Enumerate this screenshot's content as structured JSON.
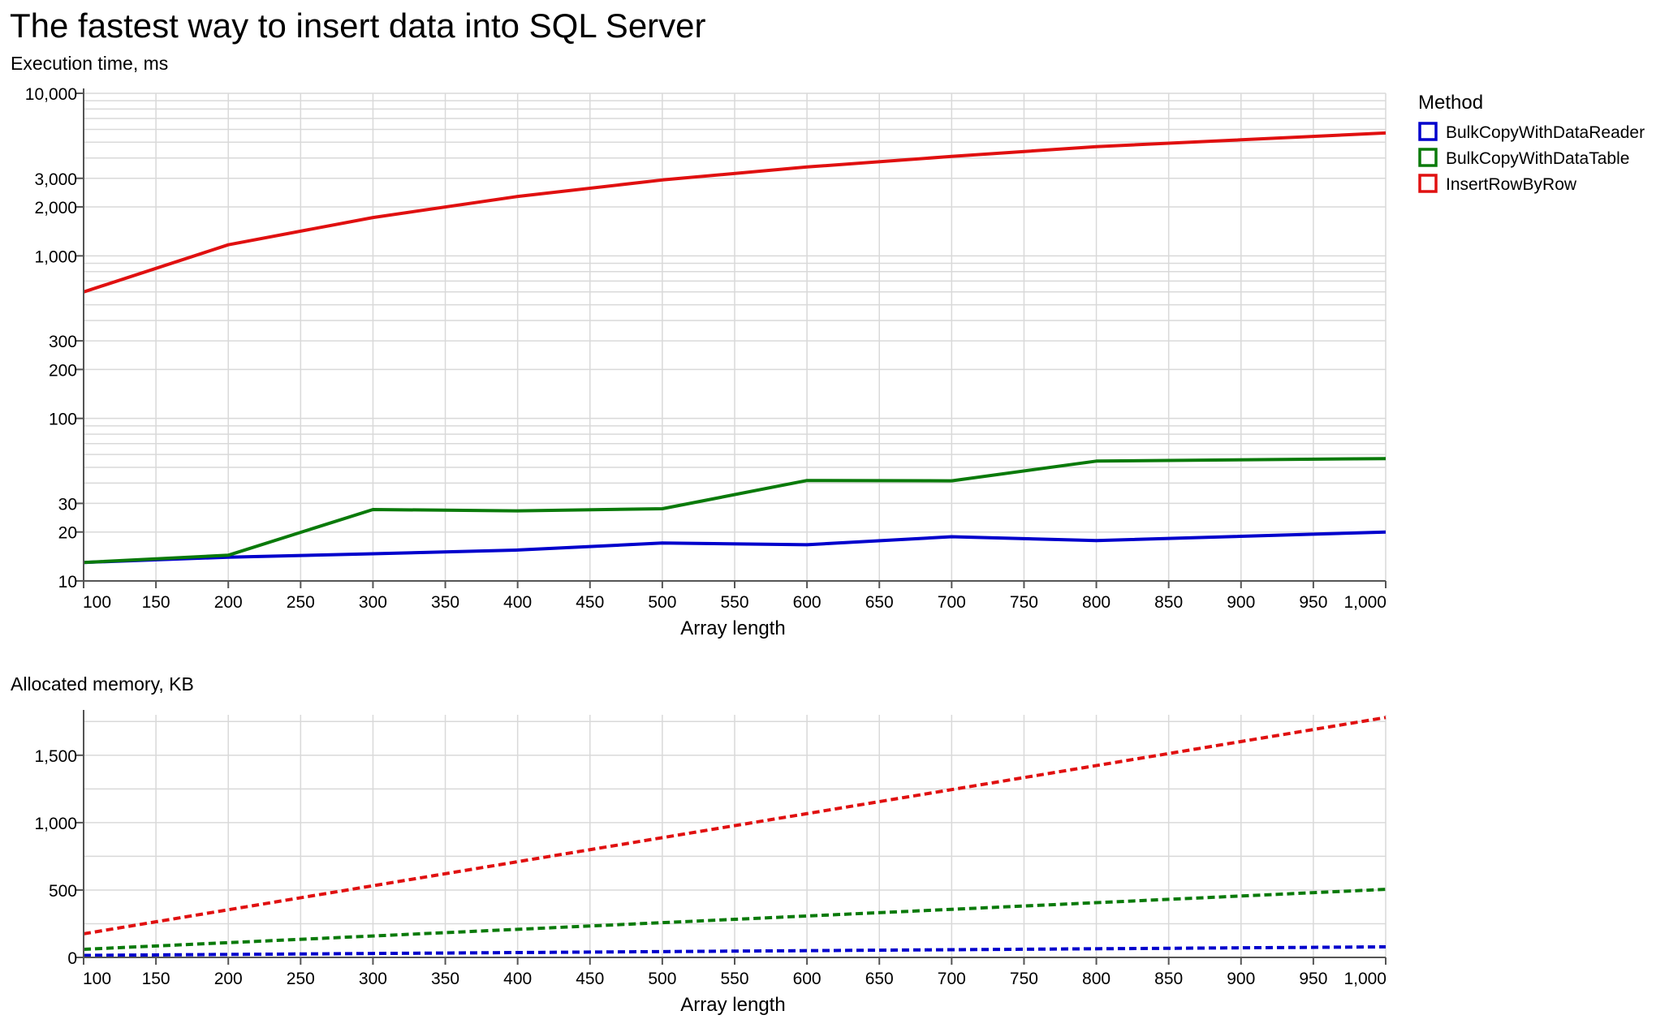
{
  "title": "The fastest way to insert data into SQL Server",
  "legend": {
    "title": "Method",
    "items": [
      {
        "label": "BulkCopyWithDataReader",
        "color": "#0000cc"
      },
      {
        "label": "BulkCopyWithDataTable",
        "color": "#0a7a0a"
      },
      {
        "label": "InsertRowByRow",
        "color": "#e01010"
      }
    ]
  },
  "chart_data": [
    {
      "type": "line",
      "title": "Execution time, ms",
      "xlabel": "Array length",
      "ylabel": "Execution time, ms",
      "yscale": "log",
      "xlim": [
        100,
        1000
      ],
      "ylim": [
        10,
        10000
      ],
      "x_ticks": [
        100,
        150,
        200,
        250,
        300,
        350,
        400,
        450,
        500,
        550,
        600,
        650,
        700,
        750,
        800,
        850,
        900,
        950,
        1000
      ],
      "x_tick_labels": [
        "100",
        "150",
        "200",
        "250",
        "300",
        "350",
        "400",
        "450",
        "500",
        "550",
        "600",
        "650",
        "700",
        "750",
        "800",
        "850",
        "900",
        "950",
        "1,000"
      ],
      "y_ticks": [
        10,
        20,
        30,
        100,
        200,
        300,
        1000,
        2000,
        3000,
        10000
      ],
      "y_tick_labels": [
        "10",
        "20",
        "30",
        "100",
        "200",
        "300",
        "1,000",
        "2,000",
        "3,000",
        "10,000"
      ],
      "x": [
        100,
        200,
        300,
        400,
        500,
        600,
        700,
        800,
        1000
      ],
      "series": [
        {
          "name": "BulkCopyWithDataReader",
          "color": "#0000cc",
          "values": [
            13,
            14,
            14.7,
            15.5,
            17.1,
            16.7,
            18.7,
            17.7,
            20
          ]
        },
        {
          "name": "BulkCopyWithDataTable",
          "color": "#0a7a0a",
          "values": [
            13,
            14.4,
            27.5,
            27,
            27.8,
            41.5,
            41.3,
            54.6,
            56.6
          ]
        },
        {
          "name": "InsertRowByRow",
          "color": "#e01010",
          "values": [
            600,
            1170,
            1720,
            2320,
            2930,
            3520,
            4090,
            4700,
            5700
          ]
        }
      ]
    },
    {
      "type": "line",
      "title": "Allocated memory, KB",
      "xlabel": "Array length",
      "ylabel": "Allocated memory, KB",
      "line_style": "dashed",
      "xlim": [
        100,
        1000
      ],
      "ylim": [
        0,
        1800
      ],
      "x_ticks": [
        100,
        150,
        200,
        250,
        300,
        350,
        400,
        450,
        500,
        550,
        600,
        650,
        700,
        750,
        800,
        850,
        900,
        950,
        1000
      ],
      "x_tick_labels": [
        "100",
        "150",
        "200",
        "250",
        "300",
        "350",
        "400",
        "450",
        "500",
        "550",
        "600",
        "650",
        "700",
        "750",
        "800",
        "850",
        "900",
        "950",
        "1,000"
      ],
      "y_ticks": [
        0,
        500,
        1000,
        1500
      ],
      "y_tick_labels": [
        "0",
        "500",
        "1,000",
        "1,500"
      ],
      "x": [
        100,
        1000
      ],
      "series": [
        {
          "name": "BulkCopyWithDataReader",
          "color": "#0000cc",
          "values": [
            15,
            78
          ]
        },
        {
          "name": "BulkCopyWithDataTable",
          "color": "#0a7a0a",
          "values": [
            60,
            505
          ]
        },
        {
          "name": "InsertRowByRow",
          "color": "#e01010",
          "values": [
            175,
            1780
          ]
        }
      ]
    }
  ]
}
